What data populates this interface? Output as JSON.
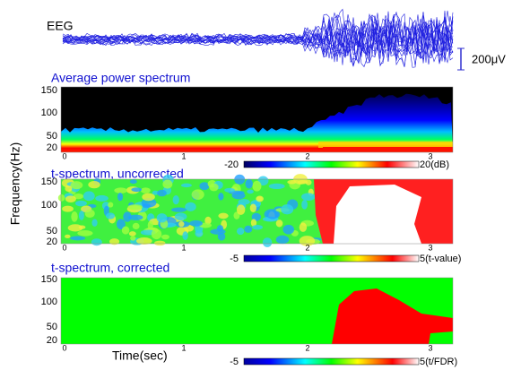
{
  "figure": {
    "eeg_label": "EEG",
    "scale_label": "200μV",
    "y_axis_label": "Frequency(Hz)",
    "x_axis_label": "Time(sec)",
    "panels": [
      {
        "title": "Average power spectrum",
        "yticks": [
          "150",
          "100",
          "50",
          "20"
        ],
        "xticks": [
          "0",
          "1",
          "2",
          "3"
        ],
        "colorbar": {
          "min": "-20",
          "max": "20(dB)"
        }
      },
      {
        "title": "t-spectrum, uncorrected",
        "yticks": [
          "150",
          "100",
          "50",
          "20"
        ],
        "xticks": [
          "0",
          "1",
          "2",
          "3"
        ],
        "colorbar": {
          "min": "-5",
          "max": "5(t-value)"
        }
      },
      {
        "title": "t-spectrum, corrected",
        "yticks": [
          "150",
          "100",
          "50",
          "20"
        ],
        "xticks": [
          "0",
          "1",
          "2",
          "3"
        ],
        "colorbar": {
          "min": "-5",
          "max": "5(t/FDR)"
        }
      }
    ]
  }
}
